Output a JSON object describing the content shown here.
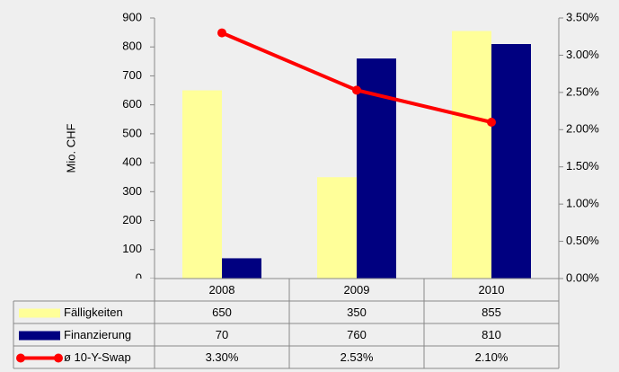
{
  "chart_data": {
    "type": "bar",
    "y_label": "Mio. CHF",
    "categories": [
      "2008",
      "2009",
      "2010"
    ],
    "series": [
      {
        "name": "Fälligkeiten",
        "color": "#ffff99",
        "values": [
          650,
          350,
          855
        ]
      },
      {
        "name": "Finanzierung",
        "color": "#000080",
        "values": [
          70,
          760,
          810
        ]
      },
      {
        "name": "ø 10-Y-Swap",
        "color": "#ff0000",
        "type": "line",
        "axis": "y2",
        "values": [
          3.3,
          2.53,
          2.1
        ],
        "value_labels": [
          "3.30%",
          "2.53%",
          "2.10%"
        ]
      }
    ],
    "ylim": [
      0,
      900
    ],
    "yticks": [
      0,
      100,
      200,
      300,
      400,
      500,
      600,
      700,
      800,
      900
    ],
    "y2lim": [
      0,
      3.5
    ],
    "y2ticks": [
      {
        "value": 0,
        "label": "0.00%"
      },
      {
        "value": 0.5,
        "label": "0.50%"
      },
      {
        "value": 1,
        "label": "1.00%"
      },
      {
        "value": 1.5,
        "label": "1.50%"
      },
      {
        "value": 2,
        "label": "2.00%"
      },
      {
        "value": 2.5,
        "label": "2.50%"
      },
      {
        "value": 3,
        "label": "3.00%"
      },
      {
        "value": 3.5,
        "label": "3.50%"
      }
    ]
  }
}
